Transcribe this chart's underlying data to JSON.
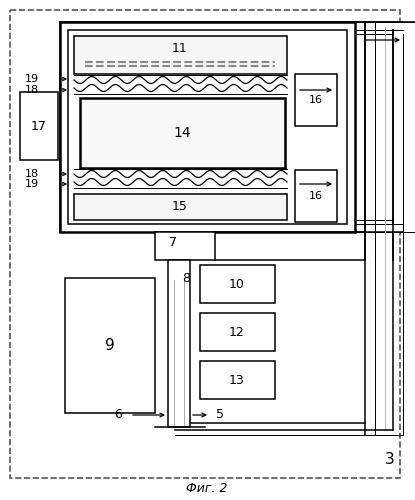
{
  "title": "Фиг. 2",
  "figure_number": "3",
  "bg_color": "#ffffff",
  "lw_thin": 0.7,
  "lw_med": 1.1,
  "lw_thick": 1.8
}
